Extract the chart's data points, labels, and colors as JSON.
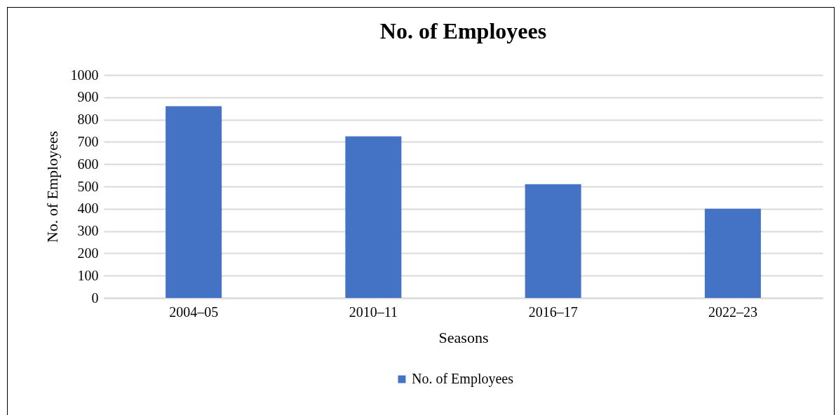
{
  "chart_data": {
    "type": "bar",
    "title": "No. of Employees",
    "xlabel": "Seasons",
    "ylabel": "No. of Employees",
    "categories": [
      "2004–05",
      "2010–11",
      "2016–17",
      "2022–23"
    ],
    "series": [
      {
        "name": "No. of Employees",
        "color": "#4472c4",
        "values": [
          860,
          725,
          510,
          400
        ]
      }
    ],
    "ylim": [
      0,
      1000
    ],
    "yticks": [
      0,
      100,
      200,
      300,
      400,
      500,
      600,
      700,
      800,
      900,
      1000
    ],
    "grid": "y",
    "legend": "bottom"
  }
}
